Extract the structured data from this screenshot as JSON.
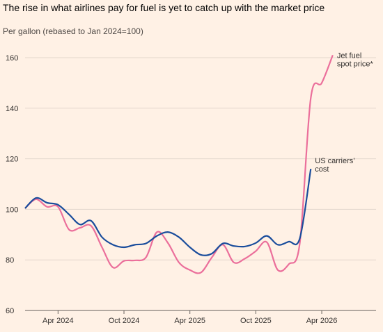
{
  "chart_data": {
    "type": "line",
    "title": "The rise in what airlines pay for fuel is yet to catch up with the market price",
    "subtitle": "Per gallon (rebased to Jan 2024=100)",
    "x": [
      "2024-01",
      "2024-02",
      "2024-03",
      "2024-04",
      "2024-05",
      "2024-06",
      "2024-07",
      "2024-08",
      "2024-09",
      "2024-10",
      "2024-11",
      "2024-12",
      "2025-01",
      "2025-02",
      "2025-03",
      "2025-04",
      "2025-05",
      "2025-06",
      "2025-07",
      "2025-08",
      "2025-09",
      "2025-10",
      "2025-11",
      "2025-12",
      "2026-01",
      "2026-02",
      "2026-03",
      "2026-04",
      "2026-05"
    ],
    "series": [
      {
        "name": "Jet fuel spot price*",
        "color": "#eb6f9b",
        "values": [
          100.4,
          104,
          101,
          101,
          92,
          92.7,
          93.5,
          85,
          77,
          79.6,
          79.8,
          81,
          91,
          86.7,
          79,
          76,
          75,
          81,
          86,
          79,
          80.5,
          83.5,
          87,
          76,
          78.3,
          86.6,
          144,
          150,
          161
        ]
      },
      {
        "name": "US carriers’ cost",
        "color": "#1a4d9c",
        "values": [
          100.4,
          104.5,
          102.6,
          101.8,
          98,
          94,
          95.5,
          89,
          86,
          85,
          86,
          86.5,
          89.5,
          91,
          89,
          85,
          82,
          82.5,
          86.5,
          85.5,
          85.3,
          86.7,
          89.5,
          86,
          87.2,
          88.5,
          116,
          null,
          null
        ]
      }
    ],
    "xticks": [
      {
        "value": "2024-04",
        "label": "Apr 2024"
      },
      {
        "value": "2024-10",
        "label": "Oct 2024"
      },
      {
        "value": "2025-04",
        "label": "Apr 2025"
      },
      {
        "value": "2025-10",
        "label": "Oct 2025"
      },
      {
        "value": "2026-04",
        "label": "Apr 2026"
      }
    ],
    "ylim": [
      60,
      170
    ],
    "yticks": [
      60,
      80,
      100,
      120,
      140,
      160
    ],
    "grid": true
  }
}
